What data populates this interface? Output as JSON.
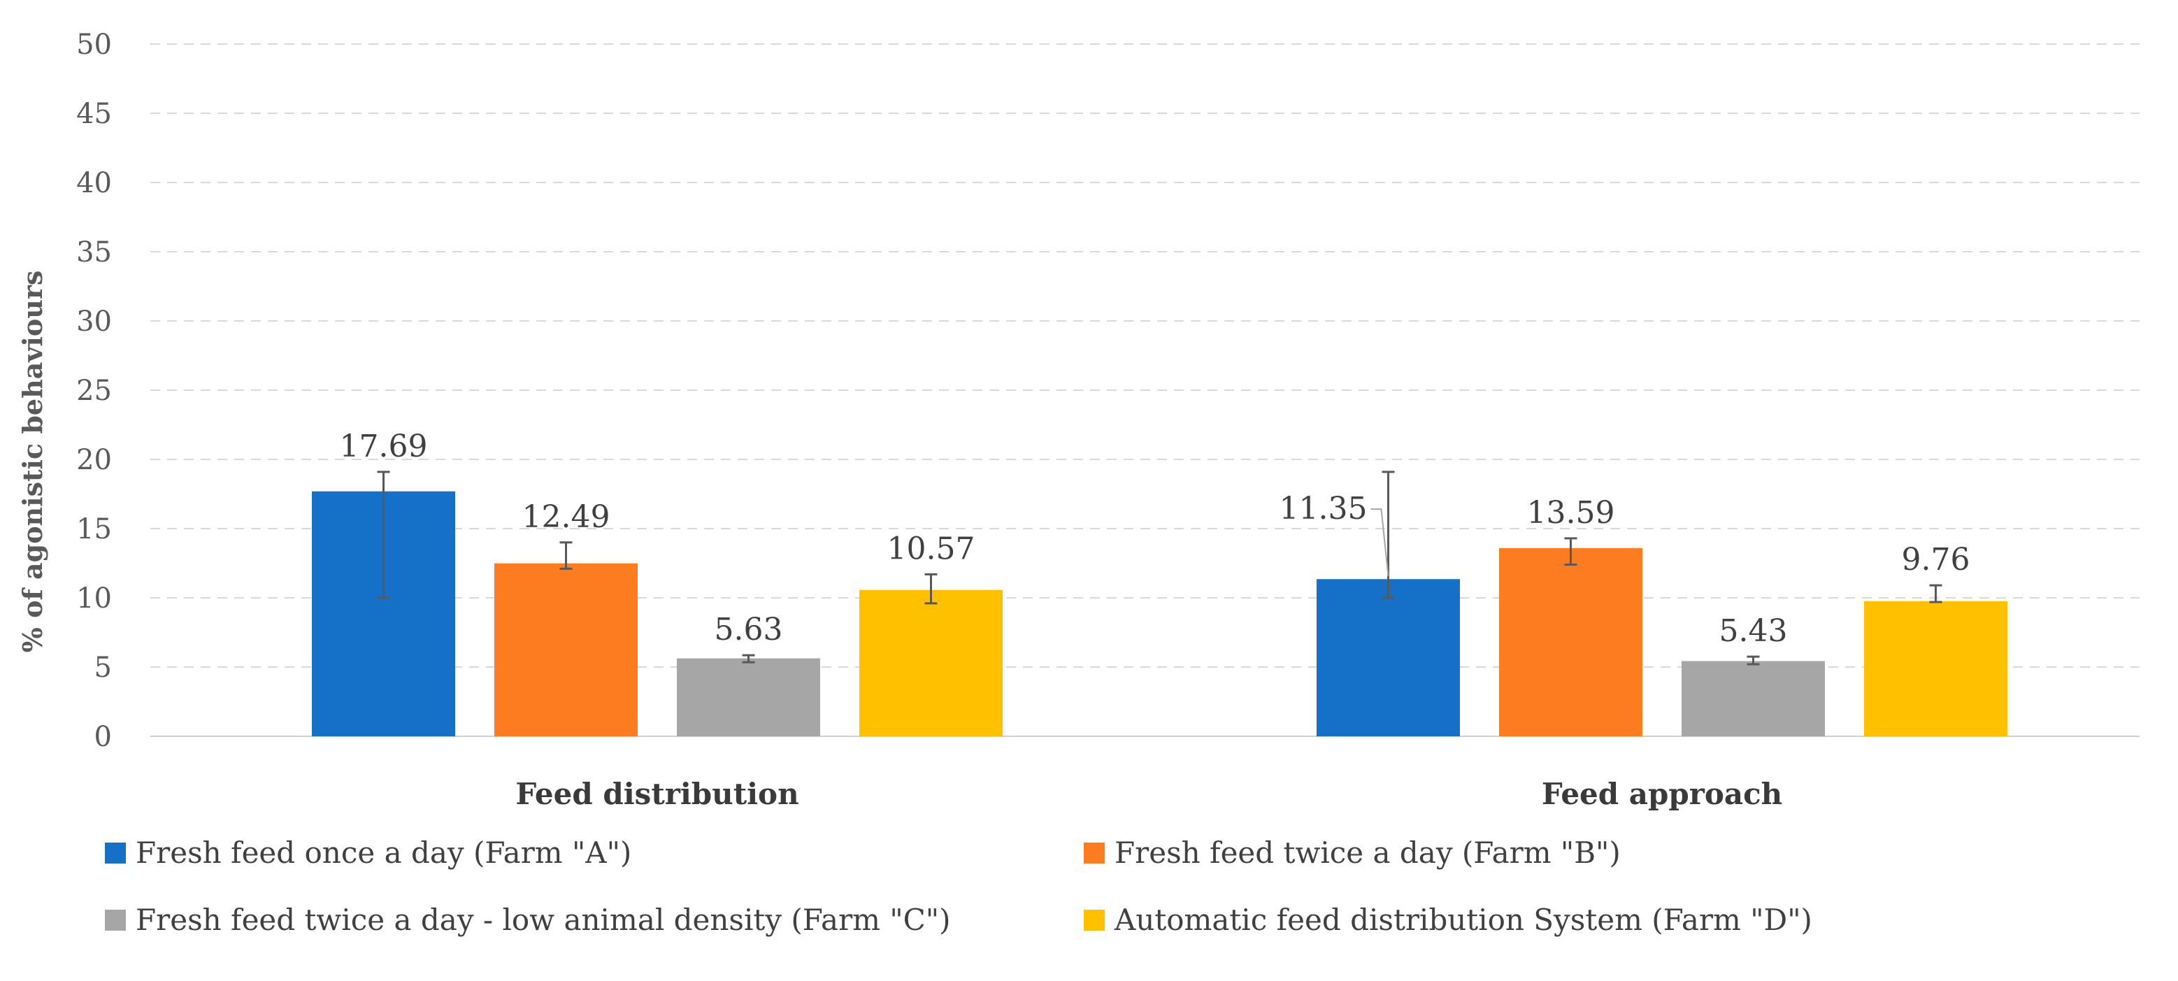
{
  "chart_data": {
    "type": "bar",
    "title": "",
    "xlabel": "",
    "ylabel": "% of agonistic behaviours",
    "ylim": [
      0,
      50
    ],
    "yticks": [
      0,
      5,
      10,
      15,
      20,
      25,
      30,
      35,
      40,
      45,
      50
    ],
    "grid": "dashed horizontal",
    "legend_position": "bottom",
    "categories": [
      "Feed distribution",
      "Feed approach"
    ],
    "series": [
      {
        "name": "Fresh feed once a day (Farm \"A\")",
        "color": "#1570C8",
        "values": [
          17.69,
          11.35
        ],
        "labels": [
          "17.69",
          "11.35"
        ],
        "error_low": [
          10.0,
          10.0
        ],
        "error_high": [
          19.1,
          19.1
        ]
      },
      {
        "name": "Fresh feed twice a day (Farm \"B\")",
        "color": "#FD7C20",
        "values": [
          12.49,
          13.59
        ],
        "labels": [
          "12.49",
          "13.59"
        ],
        "error_low": [
          12.1,
          12.4
        ],
        "error_high": [
          14.0,
          14.3
        ]
      },
      {
        "name": "Fresh feed twice a day - low animal density (Farm \"C\")",
        "color": "#A6A6A6",
        "values": [
          5.63,
          5.43
        ],
        "labels": [
          "5.63",
          "5.43"
        ],
        "error_low": [
          5.35,
          5.2
        ],
        "error_high": [
          5.85,
          5.75
        ]
      },
      {
        "name": "Automatic feed distribution System (Farm \"D\")",
        "color": "#FFC000",
        "values": [
          10.57,
          9.76
        ],
        "labels": [
          "10.57",
          "9.76"
        ],
        "error_low": [
          9.6,
          9.7
        ],
        "error_high": [
          11.7,
          10.9
        ]
      }
    ]
  }
}
